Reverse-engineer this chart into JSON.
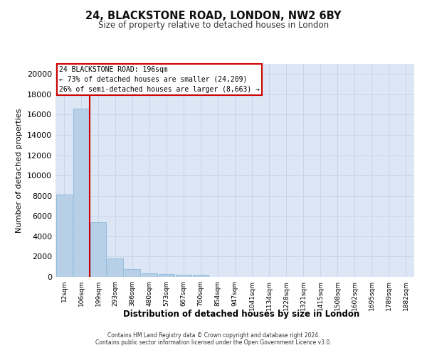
{
  "title_line1": "24, BLACKSTONE ROAD, LONDON, NW2 6BY",
  "title_line2": "Size of property relative to detached houses in London",
  "xlabel": "Distribution of detached houses by size in London",
  "ylabel": "Number of detached properties",
  "bar_labels": [
    "12sqm",
    "106sqm",
    "199sqm",
    "293sqm",
    "386sqm",
    "480sqm",
    "573sqm",
    "667sqm",
    "760sqm",
    "854sqm",
    "947sqm",
    "1041sqm",
    "1134sqm",
    "1228sqm",
    "1321sqm",
    "1415sqm",
    "1508sqm",
    "1602sqm",
    "1695sqm",
    "1789sqm",
    "1882sqm"
  ],
  "bar_values": [
    8100,
    16600,
    5400,
    1850,
    800,
    350,
    275,
    225,
    215,
    0,
    0,
    0,
    0,
    0,
    0,
    0,
    0,
    0,
    0,
    0,
    0
  ],
  "bar_color": "#b8cfe8",
  "bar_edge_color": "#7aafd4",
  "grid_color": "#c8d4e8",
  "background_color": "#dce6f5",
  "vline_color": "#cc0000",
  "annotation_text": "24 BLACKSTONE ROAD: 196sqm\n← 73% of detached houses are smaller (24,209)\n26% of semi-detached houses are larger (8,663) →",
  "annotation_box_color": "#ffffff",
  "annotation_box_edge": "#cc0000",
  "ylim": [
    0,
    21000
  ],
  "yticks": [
    0,
    2000,
    4000,
    6000,
    8000,
    10000,
    12000,
    14000,
    16000,
    18000,
    20000
  ],
  "footer_line1": "Contains HM Land Registry data © Crown copyright and database right 2024.",
  "footer_line2": "Contains public sector information licensed under the Open Government Licence v3.0."
}
